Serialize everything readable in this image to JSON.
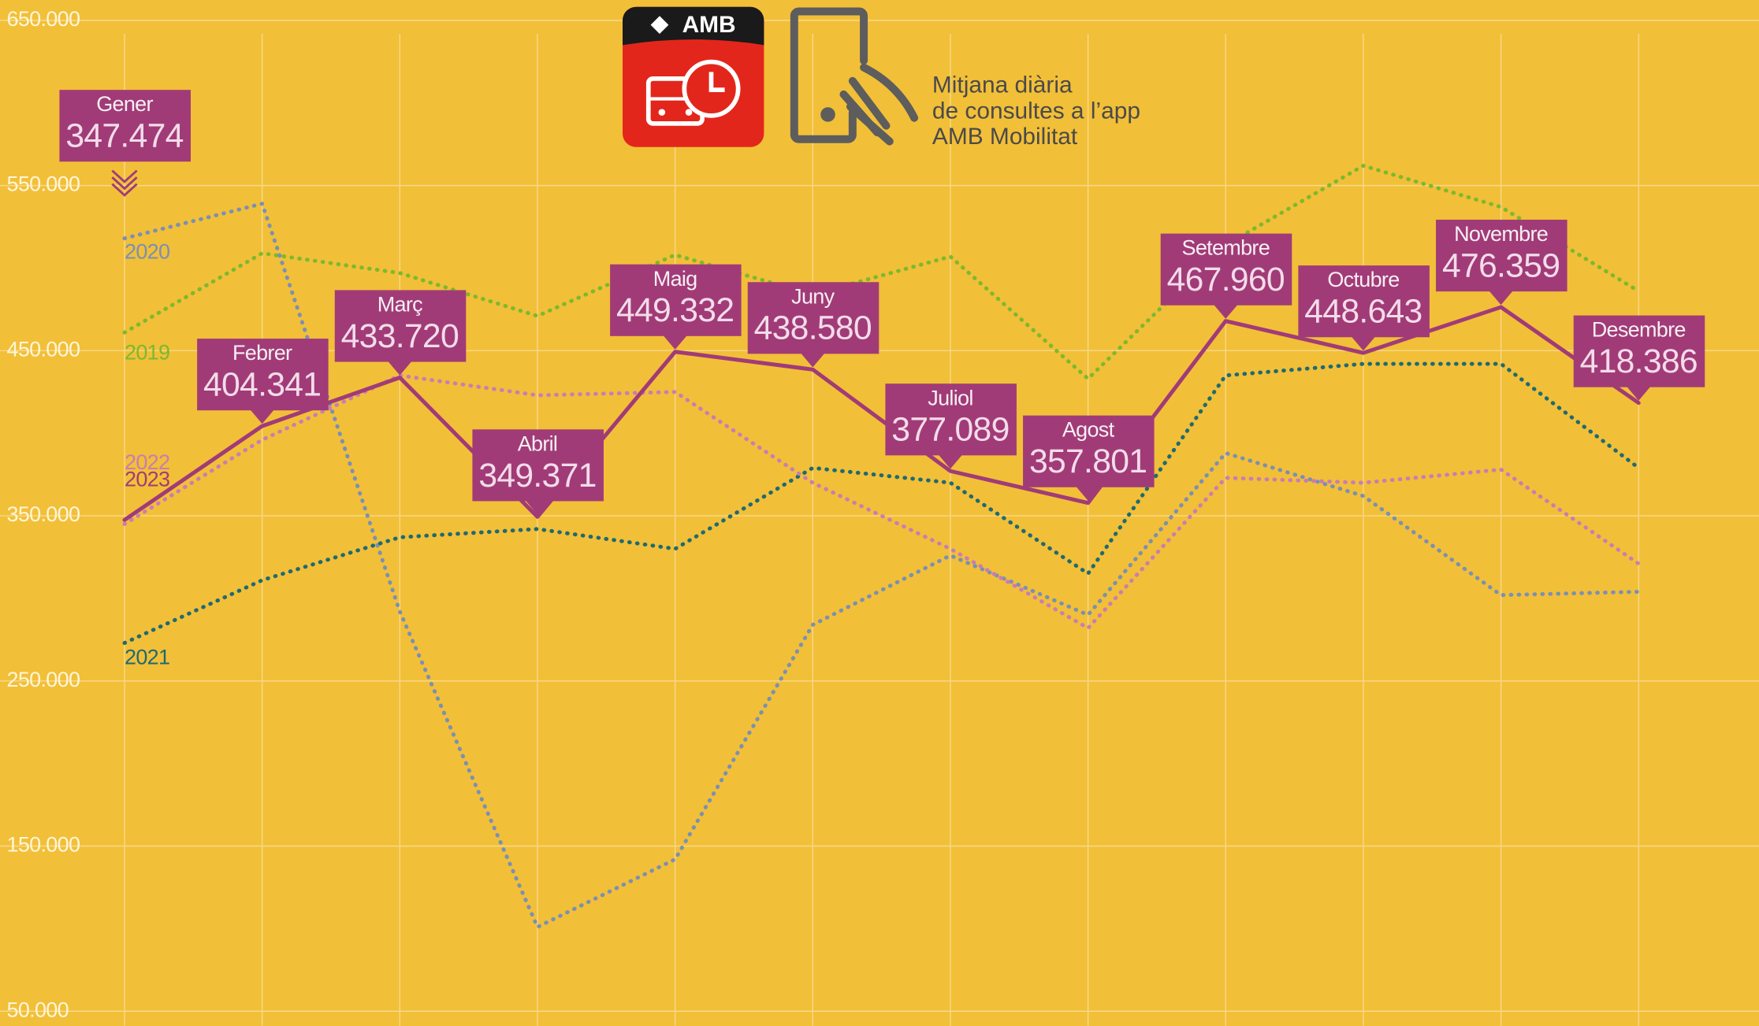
{
  "chart_data": {
    "type": "line",
    "title": [
      "Mitjana diària",
      "de consultes a l’app",
      "AMB Mobilitat"
    ],
    "logo_text": "AMB",
    "categories": [
      "Gener",
      "Febrer",
      "Març",
      "Abril",
      "Maig",
      "Juny",
      "Juliol",
      "Agost",
      "Setembre",
      "Octubre",
      "Novembre",
      "Desembre"
    ],
    "ylim": [
      50000,
      650000
    ],
    "yticks": [
      {
        "value": 50000,
        "label": "50.000"
      },
      {
        "value": 150000,
        "label": "150.000"
      },
      {
        "value": 250000,
        "label": "250.000"
      },
      {
        "value": 350000,
        "label": "350.000"
      },
      {
        "value": 450000,
        "label": "450.000"
      },
      {
        "value": 550000,
        "label": "550.000"
      },
      {
        "value": 650000,
        "label": "650.000"
      }
    ],
    "grid": true,
    "series": [
      {
        "name": "2019",
        "color": "#7cb92e",
        "style": "dotted",
        "values": [
          461000,
          509000,
          497000,
          471000,
          508000,
          484000,
          507000,
          433000,
          514000,
          562000,
          537000,
          486000
        ]
      },
      {
        "name": "2020",
        "color": "#7a90b3",
        "style": "dotted",
        "values": [
          518000,
          539000,
          292000,
          101000,
          142000,
          284000,
          326000,
          290000,
          388000,
          362000,
          302000,
          304000
        ]
      },
      {
        "name": "2021",
        "color": "#1f6a72",
        "style": "dotted",
        "values": [
          273000,
          311000,
          337000,
          342000,
          330000,
          379000,
          370000,
          315000,
          435000,
          442000,
          442000,
          379000
        ]
      },
      {
        "name": "2022",
        "color": "#c97db3",
        "style": "dotted",
        "values": [
          345000,
          396000,
          435000,
          423000,
          425000,
          370000,
          330000,
          282000,
          373000,
          370000,
          378000,
          321000
        ]
      },
      {
        "name": "2023",
        "color": "#a13b77",
        "style": "solid",
        "values": [
          347474,
          404341,
          433720,
          349371,
          449332,
          438580,
          377089,
          357801,
          467960,
          448643,
          476359,
          418386
        ],
        "value_labels": [
          "347.474",
          "404.341",
          "433.720",
          "349.371",
          "449.332",
          "438.580",
          "377.089",
          "357.801",
          "467.960",
          "448.643",
          "476.359",
          "418.386"
        ]
      }
    ]
  }
}
